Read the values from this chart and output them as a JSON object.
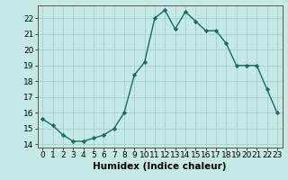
{
  "x": [
    0,
    1,
    2,
    3,
    4,
    5,
    6,
    7,
    8,
    9,
    10,
    11,
    12,
    13,
    14,
    15,
    16,
    17,
    18,
    19,
    20,
    21,
    22,
    23
  ],
  "y": [
    15.6,
    15.2,
    14.6,
    14.2,
    14.2,
    14.4,
    14.6,
    15.0,
    16.0,
    18.4,
    19.2,
    22.0,
    22.5,
    21.3,
    22.4,
    21.8,
    21.2,
    21.2,
    20.4,
    19.0,
    19.0,
    19.0,
    17.5,
    16.0
  ],
  "line_color": "#1a6b60",
  "marker": "D",
  "marker_size": 2.2,
  "bg_color": "#c5eae6",
  "grid_color": "#a8d5d0",
  "xlabel": "Humidex (Indice chaleur)",
  "xlim": [
    -0.5,
    23.5
  ],
  "ylim": [
    13.8,
    22.8
  ],
  "yticks": [
    14,
    15,
    16,
    17,
    18,
    19,
    20,
    21,
    22
  ],
  "xticks": [
    0,
    1,
    2,
    3,
    4,
    5,
    6,
    7,
    8,
    9,
    10,
    11,
    12,
    13,
    14,
    15,
    16,
    17,
    18,
    19,
    20,
    21,
    22,
    23
  ],
  "xlabel_fontsize": 7.5,
  "tick_fontsize": 6.5,
  "spine_color": "#555555",
  "linewidth": 1.0
}
